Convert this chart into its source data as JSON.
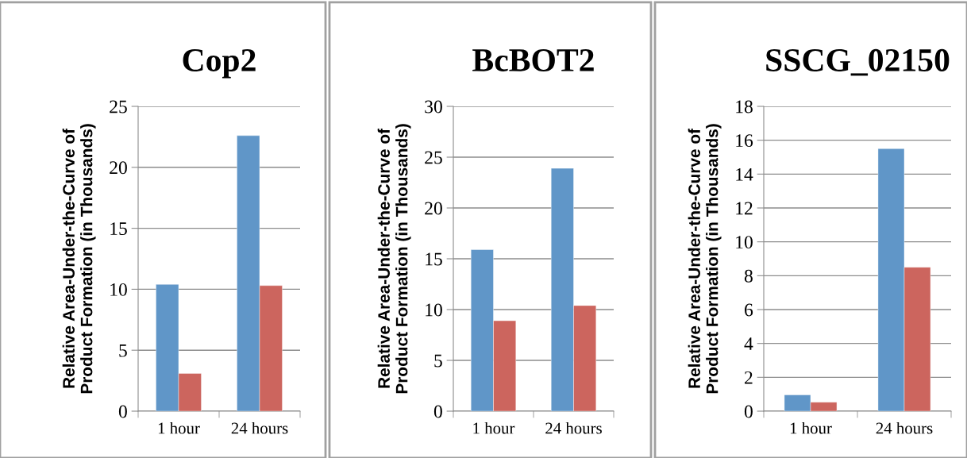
{
  "chart_data": [
    {
      "type": "bar",
      "title": "Cop2",
      "ylabel": "Relative Area-Under-the-Curve of\nProduct Formation (in Thousands)",
      "categories": [
        "1 hour",
        "24 hours"
      ],
      "series": [
        {
          "color": "#6096c8",
          "values": [
            10.4,
            22.6
          ]
        },
        {
          "color": "#cc655e",
          "values": [
            3.1,
            10.3
          ]
        }
      ],
      "ylim": [
        0,
        25
      ],
      "yticks": [
        0,
        5,
        10,
        15,
        20,
        25
      ],
      "grid": "y",
      "legend": false
    },
    {
      "type": "bar",
      "title": "BcBOT2",
      "ylabel": "Relative Area-Under-the-Curve of\nProduct Formation (in Thousands)",
      "categories": [
        "1 hour",
        "24 hours"
      ],
      "series": [
        {
          "color": "#6096c8",
          "values": [
            15.9,
            23.9
          ]
        },
        {
          "color": "#cc655e",
          "values": [
            8.9,
            10.4
          ]
        }
      ],
      "ylim": [
        0,
        30
      ],
      "yticks": [
        0,
        5,
        10,
        15,
        20,
        25,
        30
      ],
      "grid": "y",
      "legend": false
    },
    {
      "type": "bar",
      "title": "SSCG_02150",
      "ylabel": "Relative Area-Under-the-Curve of\nProduct Formation (in Thousands)",
      "categories": [
        "1 hour",
        "24 hours"
      ],
      "series": [
        {
          "color": "#6096c8",
          "values": [
            0.96,
            15.5
          ]
        },
        {
          "color": "#cc655e",
          "values": [
            0.53,
            8.5
          ]
        }
      ],
      "ylim": [
        0,
        18
      ],
      "yticks": [
        0,
        2,
        4,
        6,
        8,
        10,
        12,
        14,
        16,
        18
      ],
      "grid": "y",
      "legend": false
    }
  ]
}
